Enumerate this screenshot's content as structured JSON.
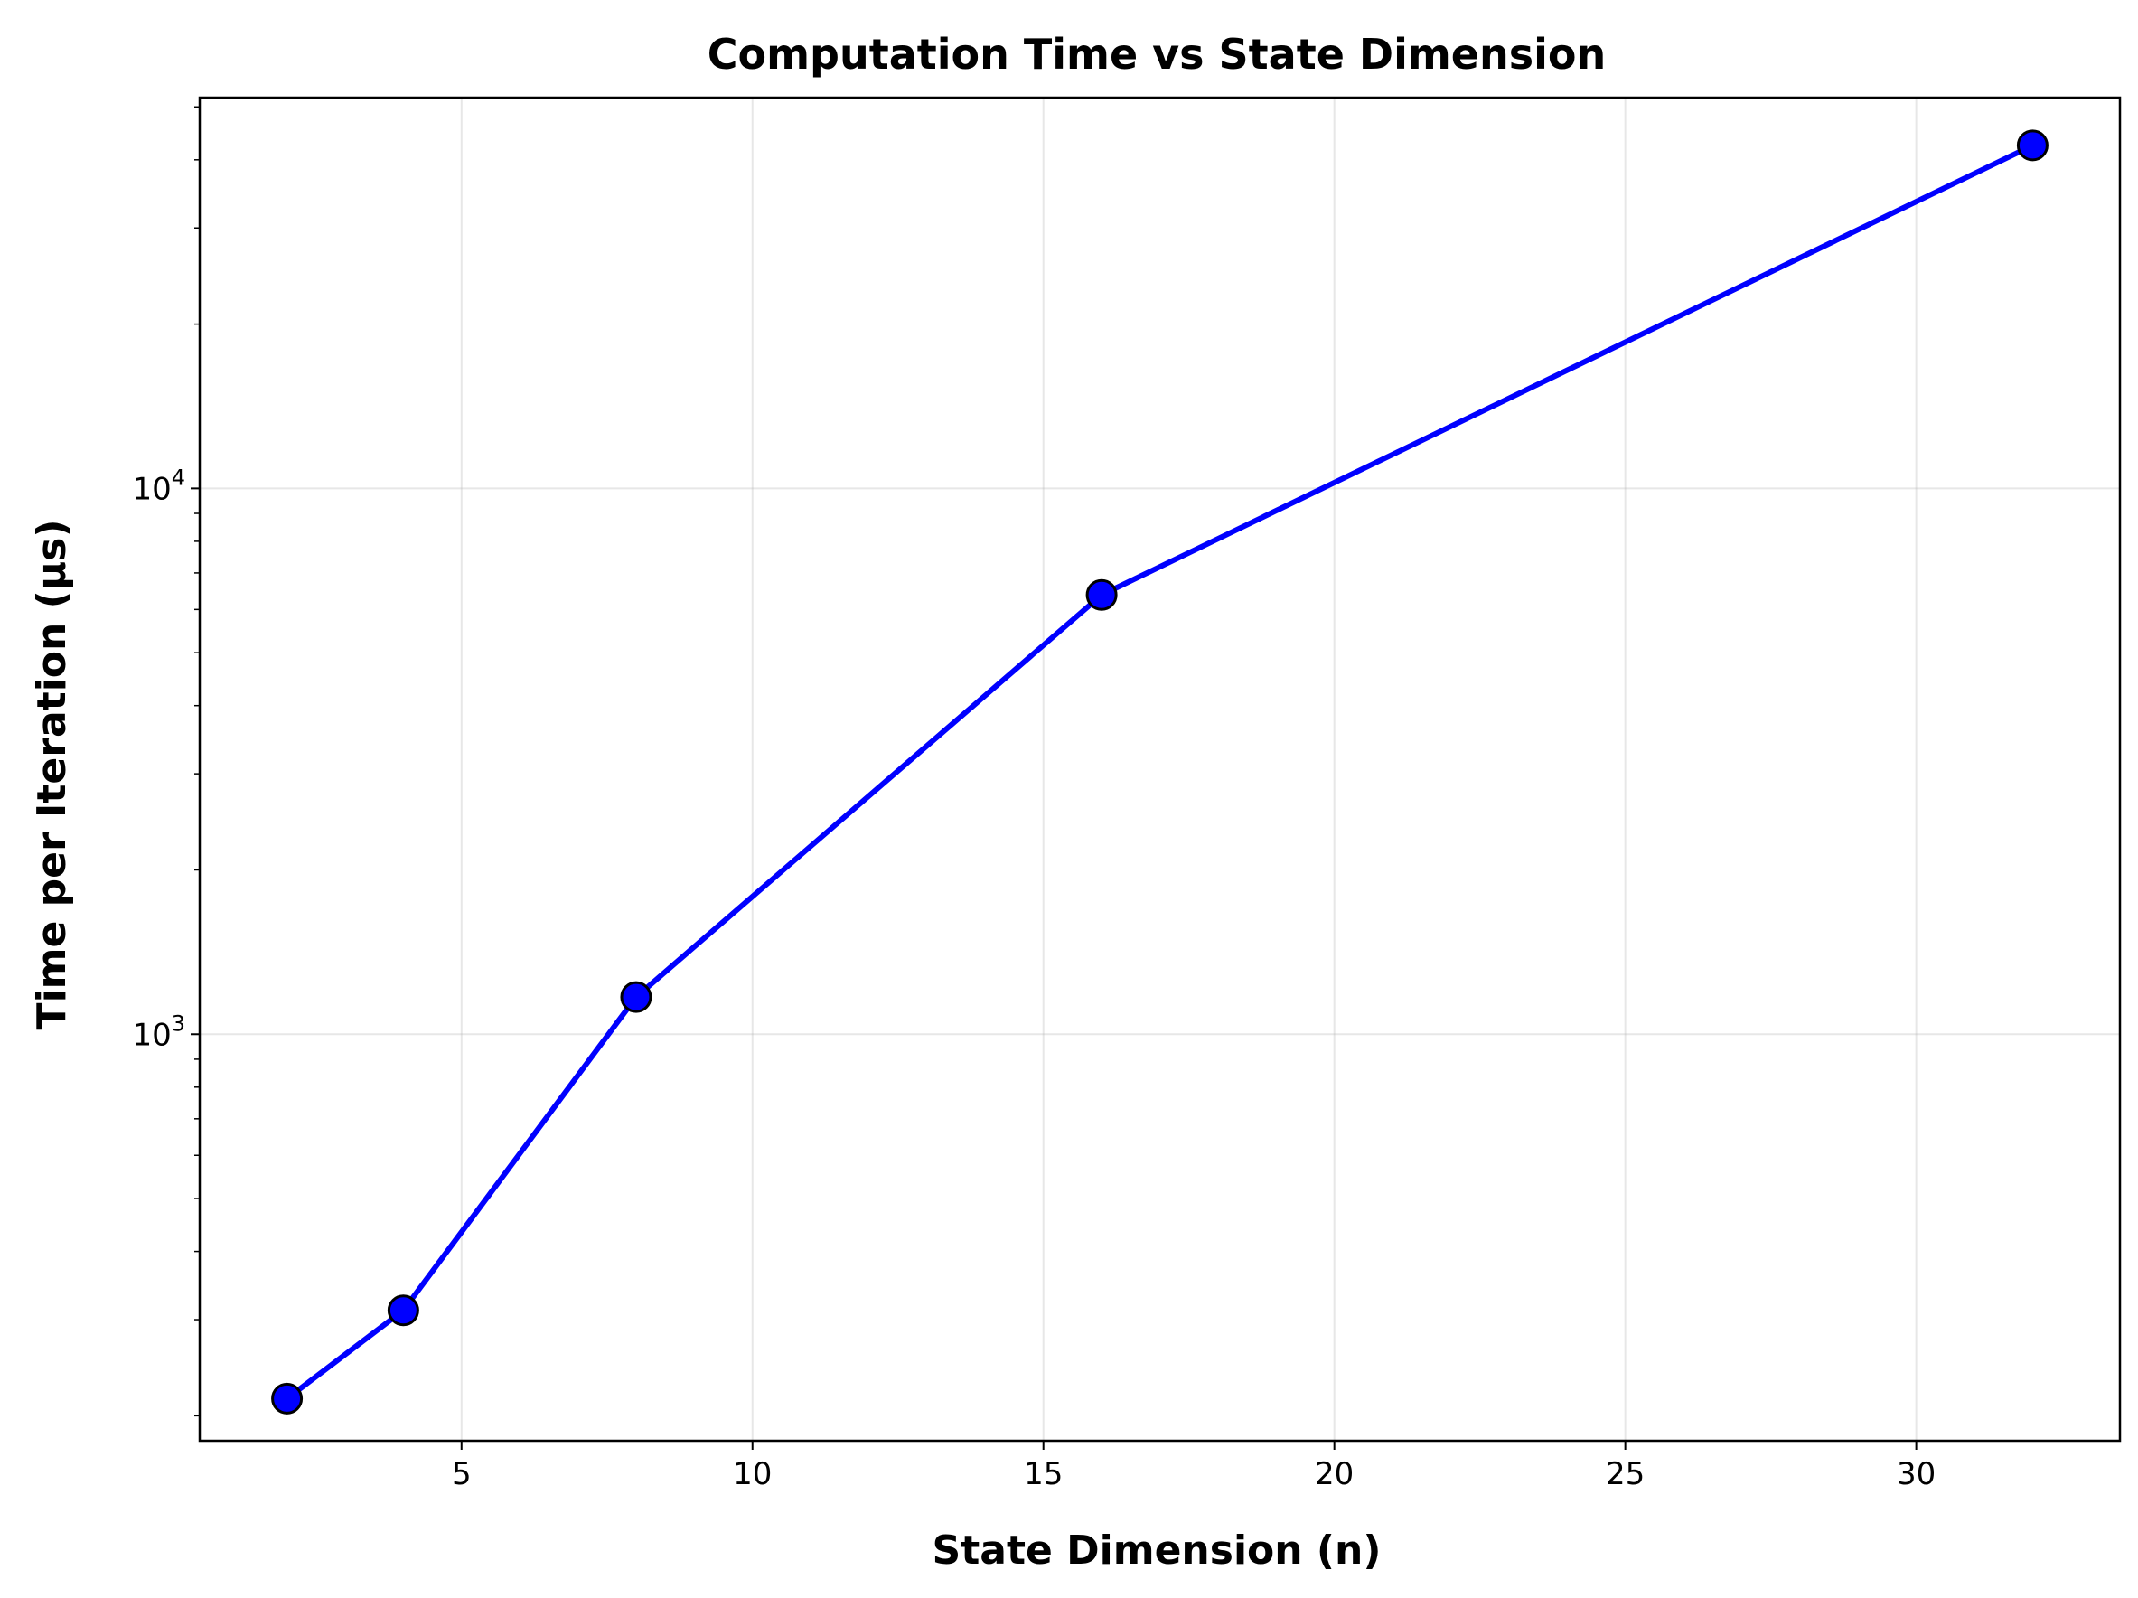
{
  "chart_data": {
    "type": "line",
    "title": "Computation Time vs State Dimension",
    "xlabel": "State Dimension (n)",
    "ylabel": "Time per Iteration (µs)",
    "x_ticks": [
      5,
      10,
      15,
      20,
      25,
      30
    ],
    "y_ticks": [
      {
        "base": "10",
        "exp": "3",
        "value": 1000
      },
      {
        "base": "10",
        "exp": "4",
        "value": 10000
      }
    ],
    "xlim": [
      0.5,
      33.5
    ],
    "ylim": [
      180,
      52000
    ],
    "y_scale": "log",
    "grid": true,
    "series": [
      {
        "x": [
          2,
          4,
          8,
          16,
          32
        ],
        "y": [
          215,
          312,
          1170,
          6380,
          42500
        ],
        "color": "#0000ff",
        "marker_color": "#0000ff",
        "marker_edge": "#000000"
      }
    ]
  }
}
